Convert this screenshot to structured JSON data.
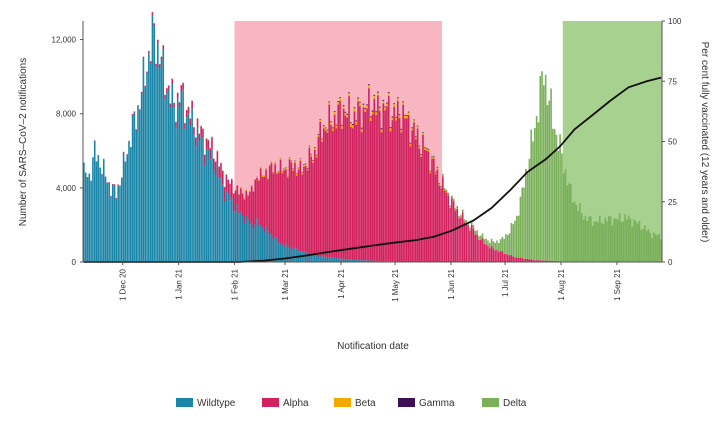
{
  "chart_data": {
    "type": "bar",
    "stacked": true,
    "title": "",
    "xlabel": "Notification date",
    "ylabel": "Number of SARS–CoV–2 notifications",
    "y2label": "Per cent fully vaccinated (12 years and older)",
    "x_start": "2020-11-09",
    "x_end": "2021-09-25",
    "x_ticks": [
      {
        "date": "2020-12-01",
        "label": "1 Dec 20"
      },
      {
        "date": "2021-01-01",
        "label": "1 Jan 21"
      },
      {
        "date": "2021-02-01",
        "label": "1 Feb 21"
      },
      {
        "date": "2021-03-01",
        "label": "1 Mar 21"
      },
      {
        "date": "2021-04-01",
        "label": "1 Apr 21"
      },
      {
        "date": "2021-05-01",
        "label": "1 May 21"
      },
      {
        "date": "2021-06-01",
        "label": "1 Jun 21"
      },
      {
        "date": "2021-07-01",
        "label": "1 Jul 21"
      },
      {
        "date": "2021-08-01",
        "label": "1 Aug 21"
      },
      {
        "date": "2021-09-01",
        "label": "1 Sep 21"
      }
    ],
    "ylim": [
      0,
      13000
    ],
    "y_ticks": [
      {
        "value": 0,
        "label": "0"
      },
      {
        "value": 4000,
        "label": "4,000"
      },
      {
        "value": 8000,
        "label": "8,000"
      },
      {
        "value": 12000,
        "label": "12,000"
      }
    ],
    "y2lim": [
      0,
      100
    ],
    "y2_ticks": [
      {
        "value": 0,
        "label": "0"
      },
      {
        "value": 25,
        "label": "25"
      },
      {
        "value": 50,
        "label": "50"
      },
      {
        "value": 75,
        "label": "75"
      },
      {
        "value": 100,
        "label": "100"
      }
    ],
    "shaded_periods": [
      {
        "start": "2021-02-01",
        "end": "2021-05-26",
        "color": "#f7b6c2"
      },
      {
        "start": "2021-08-02",
        "end": "2021-09-25",
        "color": "#a6d18f"
      }
    ],
    "series": [
      {
        "name": "Wildtype",
        "color": "#1b85a8",
        "values": [
          [
            0,
            4800
          ],
          [
            3,
            4600
          ],
          [
            6,
            5900
          ],
          [
            9,
            5400
          ],
          [
            12,
            4600
          ],
          [
            15,
            4000
          ],
          [
            18,
            3700
          ],
          [
            21,
            4700
          ],
          [
            24,
            6000
          ],
          [
            27,
            7200
          ],
          [
            30,
            8200
          ],
          [
            33,
            9600
          ],
          [
            36,
            11100
          ],
          [
            39,
            12300
          ],
          [
            42,
            11000
          ],
          [
            45,
            9800
          ],
          [
            48,
            8700
          ],
          [
            51,
            8200
          ],
          [
            54,
            8800
          ],
          [
            57,
            7900
          ],
          [
            60,
            7400
          ],
          [
            63,
            6800
          ],
          [
            66,
            6300
          ],
          [
            69,
            5800
          ],
          [
            72,
            5400
          ],
          [
            75,
            4600
          ],
          [
            78,
            3800
          ],
          [
            81,
            3400
          ],
          [
            84,
            2900
          ],
          [
            87,
            2600
          ],
          [
            90,
            2300
          ],
          [
            93,
            2000
          ],
          [
            96,
            2100
          ],
          [
            99,
            1900
          ],
          [
            102,
            1600
          ],
          [
            105,
            1400
          ],
          [
            108,
            1100
          ],
          [
            111,
            900
          ],
          [
            114,
            800
          ],
          [
            117,
            700
          ],
          [
            120,
            600
          ],
          [
            126,
            400
          ],
          [
            135,
            250
          ],
          [
            150,
            120
          ],
          [
            165,
            50
          ],
          [
            180,
            20
          ],
          [
            195,
            0
          ],
          [
            320,
            0
          ]
        ]
      },
      {
        "name": "Alpha",
        "color": "#d1215f",
        "values": [
          [
            0,
            0
          ],
          [
            30,
            60
          ],
          [
            40,
            160
          ],
          [
            50,
            280
          ],
          [
            60,
            400
          ],
          [
            70,
            580
          ],
          [
            80,
            820
          ],
          [
            90,
            1300
          ],
          [
            97,
            2600
          ],
          [
            100,
            2900
          ],
          [
            104,
            3600
          ],
          [
            108,
            3900
          ],
          [
            112,
            4100
          ],
          [
            116,
            4500
          ],
          [
            120,
            4300
          ],
          [
            124,
            4900
          ],
          [
            128,
            5500
          ],
          [
            132,
            6800
          ],
          [
            136,
            7200
          ],
          [
            140,
            7600
          ],
          [
            144,
            8000
          ],
          [
            148,
            7600
          ],
          [
            152,
            7800
          ],
          [
            156,
            8100
          ],
          [
            160,
            8400
          ],
          [
            164,
            8000
          ],
          [
            168,
            8200
          ],
          [
            172,
            7800
          ],
          [
            176,
            8000
          ],
          [
            180,
            7400
          ],
          [
            184,
            6800
          ],
          [
            188,
            6200
          ],
          [
            192,
            5600
          ],
          [
            196,
            4700
          ],
          [
            200,
            3900
          ],
          [
            204,
            3200
          ],
          [
            208,
            2600
          ],
          [
            212,
            2100
          ],
          [
            216,
            1700
          ],
          [
            220,
            1200
          ],
          [
            225,
            800
          ],
          [
            230,
            600
          ],
          [
            235,
            400
          ],
          [
            240,
            250
          ],
          [
            245,
            180
          ],
          [
            250,
            100
          ],
          [
            260,
            60
          ],
          [
            270,
            20
          ],
          [
            280,
            0
          ],
          [
            320,
            0
          ]
        ]
      },
      {
        "name": "Beta",
        "color": "#f2a900",
        "values": [
          [
            0,
            0
          ],
          [
            80,
            20
          ],
          [
            100,
            50
          ],
          [
            120,
            90
          ],
          [
            140,
            150
          ],
          [
            150,
            180
          ],
          [
            160,
            160
          ],
          [
            170,
            160
          ],
          [
            180,
            140
          ],
          [
            190,
            100
          ],
          [
            200,
            60
          ],
          [
            210,
            30
          ],
          [
            220,
            10
          ],
          [
            230,
            0
          ],
          [
            320,
            0
          ]
        ]
      },
      {
        "name": "Gamma",
        "color": "#3c1053",
        "values": [
          [
            0,
            0
          ],
          [
            100,
            10
          ],
          [
            120,
            25
          ],
          [
            140,
            45
          ],
          [
            160,
            55
          ],
          [
            180,
            40
          ],
          [
            200,
            25
          ],
          [
            220,
            10
          ],
          [
            240,
            0
          ],
          [
            320,
            0
          ]
        ]
      },
      {
        "name": "Delta",
        "color": "#7ab05a",
        "values": [
          [
            0,
            0
          ],
          [
            180,
            0
          ],
          [
            190,
            20
          ],
          [
            200,
            50
          ],
          [
            210,
            100
          ],
          [
            220,
            200
          ],
          [
            228,
            400
          ],
          [
            232,
            700
          ],
          [
            236,
            1300
          ],
          [
            240,
            2200
          ],
          [
            243,
            3500
          ],
          [
            246,
            5200
          ],
          [
            249,
            6600
          ],
          [
            252,
            8400
          ],
          [
            255,
            10200
          ],
          [
            257,
            9200
          ],
          [
            260,
            7600
          ],
          [
            263,
            6500
          ],
          [
            266,
            5200
          ],
          [
            270,
            3700
          ],
          [
            274,
            2900
          ],
          [
            278,
            2400
          ],
          [
            282,
            2200
          ],
          [
            286,
            2200
          ],
          [
            290,
            2300
          ],
          [
            295,
            2300
          ],
          [
            300,
            2400
          ],
          [
            305,
            2200
          ],
          [
            310,
            1900
          ],
          [
            315,
            1500
          ],
          [
            320,
            1400
          ]
        ]
      }
    ],
    "vaccination_line": {
      "color": "#111111",
      "axis": "right",
      "points": [
        [
          0,
          0
        ],
        [
          86,
          0
        ],
        [
          100,
          0.6
        ],
        [
          112,
          1.5
        ],
        [
          124,
          2.8
        ],
        [
          136,
          4.2
        ],
        [
          148,
          5.5
        ],
        [
          160,
          6.8
        ],
        [
          172,
          8
        ],
        [
          184,
          9.1
        ],
        [
          194,
          10.5
        ],
        [
          204,
          13
        ],
        [
          216,
          17.2
        ],
        [
          226,
          22.4
        ],
        [
          236,
          29.6
        ],
        [
          246,
          37.4
        ],
        [
          256,
          42.6
        ],
        [
          264,
          48
        ],
        [
          272,
          55
        ],
        [
          282,
          61
        ],
        [
          292,
          67
        ],
        [
          302,
          72.5
        ],
        [
          312,
          75
        ],
        [
          320,
          76.5
        ]
      ]
    },
    "legend_position": "bottom",
    "legend": [
      {
        "name": "Wildtype",
        "color": "#1b85a8"
      },
      {
        "name": "Alpha",
        "color": "#d1215f"
      },
      {
        "name": "Beta",
        "color": "#f2a900"
      },
      {
        "name": "Gamma",
        "color": "#3c1053"
      },
      {
        "name": "Delta",
        "color": "#7ab05a"
      }
    ]
  }
}
